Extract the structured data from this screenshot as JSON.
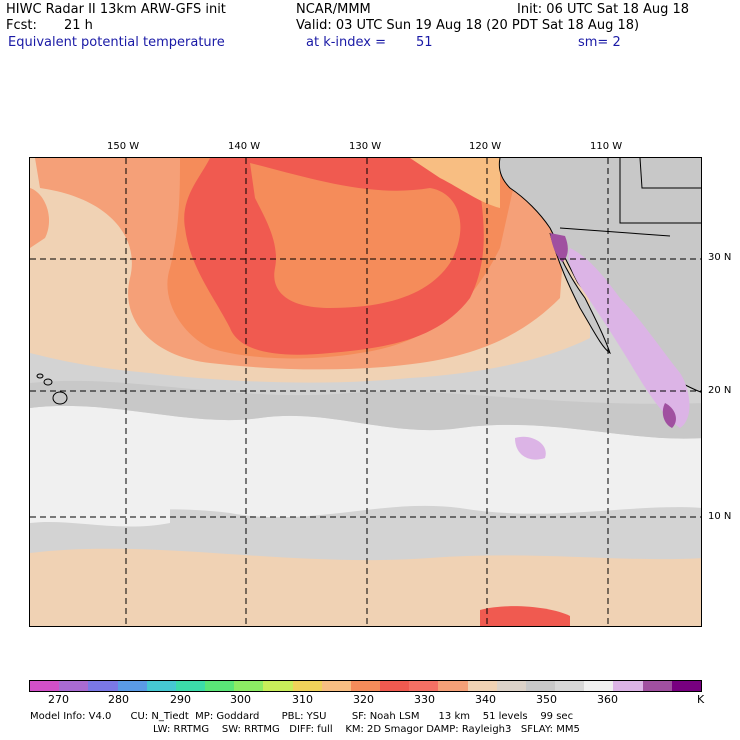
{
  "header": {
    "title_left": "HIWC Radar II 13km ARW-GFS init",
    "title_org": "NCAR/MMM",
    "init": "Init: 06 UTC Sat 18 Aug 18",
    "fcst_label": "Fcst:",
    "fcst_value": "21 h",
    "valid": "Valid: 03 UTC Sun 19 Aug 18 (20 PDT Sat 18 Aug 18)",
    "field": "Equivalent potential temperature",
    "level": "at k-index =",
    "level_value": "51",
    "smoothing": "sm= 2"
  },
  "map": {
    "lon_labels": [
      "150 W",
      "140 W",
      "130 W",
      "120 W",
      "110 W"
    ],
    "lat_labels": [
      "30 N",
      "20 N",
      "10 N"
    ],
    "fill_colors": {
      "land": "#c8c8c8",
      "ocean_cool": "#d3d3d3",
      "white_band": "#f0f0f0",
      "tan": "#f0d2b4",
      "salmon": "#f5a078",
      "orange": "#f58c5a",
      "red": "#f05a50",
      "peach": "#f8be82",
      "purple": "#a050a0",
      "lavender": "#dcb4e6"
    }
  },
  "colorbar": {
    "colors": [
      "#d250c8",
      "#a96bd2",
      "#7a78e6",
      "#5a9be6",
      "#46c8d2",
      "#3cdcaa",
      "#5ae678",
      "#8cec64",
      "#c8ee5a",
      "#f0d25a",
      "#f8be82",
      "#f58c5a",
      "#f05a50",
      "#f57064",
      "#f5a078",
      "#f0d2b4",
      "#dcd2c8",
      "#c8c8c8",
      "#d7d7d7",
      "#f0f0f0",
      "#dcb4e6",
      "#a050a0",
      "#780080"
    ],
    "labels": [
      "270",
      "280",
      "290",
      "300",
      "310",
      "320",
      "330",
      "340",
      "350",
      "360"
    ],
    "unit": "K"
  },
  "footer": {
    "line1": "Model Info: V4.0      CU: N_Tiedt  MP: Goddard       PBL: YSU        SF: Noah LSM      13 km    51 levels    99 sec",
    "line2": "LW: RRTMG    SW: RRTMG   DIFF: full    KM: 2D Smagor DAMP: Rayleigh3   SFLAY: MM5"
  }
}
